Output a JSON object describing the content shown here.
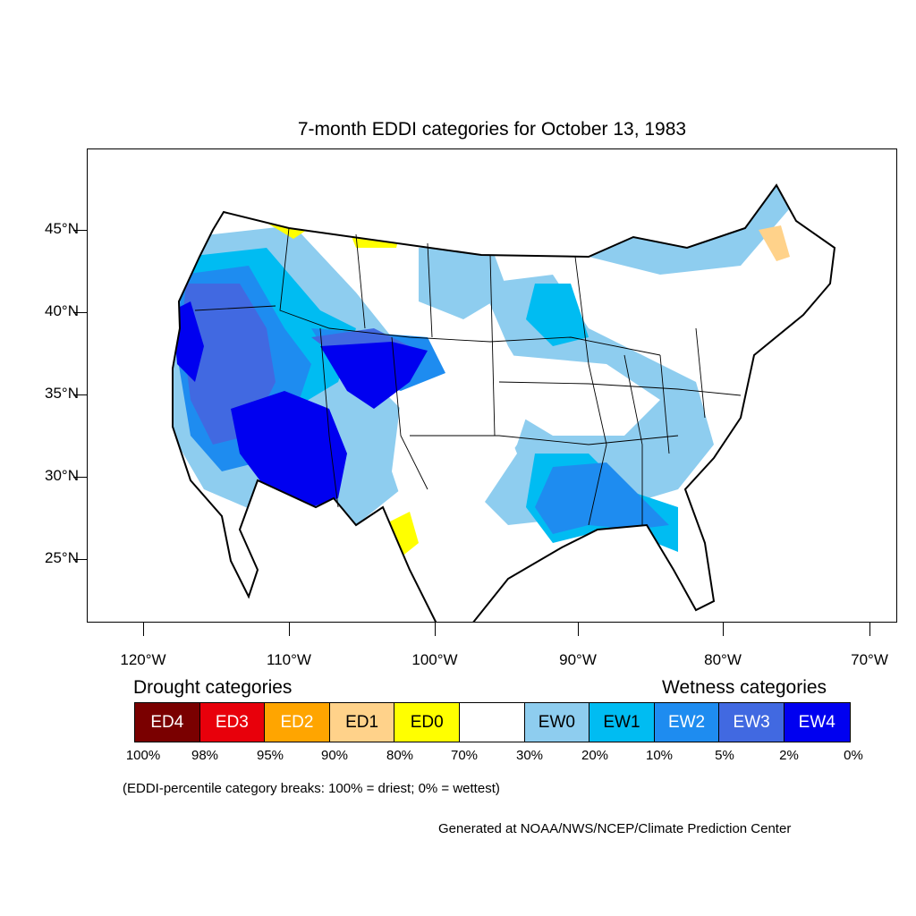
{
  "title": "7-month EDDI categories for October 13, 1983",
  "latitude_labels": [
    "45°N",
    "40°N",
    "35°N",
    "30°N",
    "25°N"
  ],
  "longitude_labels": [
    "120°W",
    "110°W",
    "100°W",
    "90°W",
    "80°W",
    "70°W"
  ],
  "legend": {
    "drought_heading": "Drought categories",
    "wetness_heading": "Wetness categories",
    "categories": [
      {
        "label": "ED4",
        "color": "#7a0000",
        "text_color": "#ffffff"
      },
      {
        "label": "ED3",
        "color": "#e8000b",
        "text_color": "#ffffff"
      },
      {
        "label": "ED2",
        "color": "#ffa500",
        "text_color": "#ffffff"
      },
      {
        "label": "ED1",
        "color": "#ffd28a",
        "text_color": "#000000"
      },
      {
        "label": "ED0",
        "color": "#ffff00",
        "text_color": "#000000"
      },
      {
        "label": "",
        "color": "#ffffff",
        "text_color": "#000000"
      },
      {
        "label": "EW0",
        "color": "#8ecdef",
        "text_color": "#000000"
      },
      {
        "label": "EW1",
        "color": "#00bcf2",
        "text_color": "#000000"
      },
      {
        "label": "EW2",
        "color": "#1e8cf0",
        "text_color": "#ffffff"
      },
      {
        "label": "EW3",
        "color": "#4169e1",
        "text_color": "#ffffff"
      },
      {
        "label": "EW4",
        "color": "#0000f0",
        "text_color": "#ffffff"
      }
    ],
    "percentile_breaks": [
      "100%",
      "98%",
      "95%",
      "90%",
      "80%",
      "70%",
      "30%",
      "20%",
      "10%",
      "5%",
      "2%",
      "0%"
    ]
  },
  "note": "(EDDI-percentile category breaks: 100% = driest; 0% = wettest)",
  "credit": "Generated at NOAA/NWS/NCEP/Climate Prediction Center"
}
